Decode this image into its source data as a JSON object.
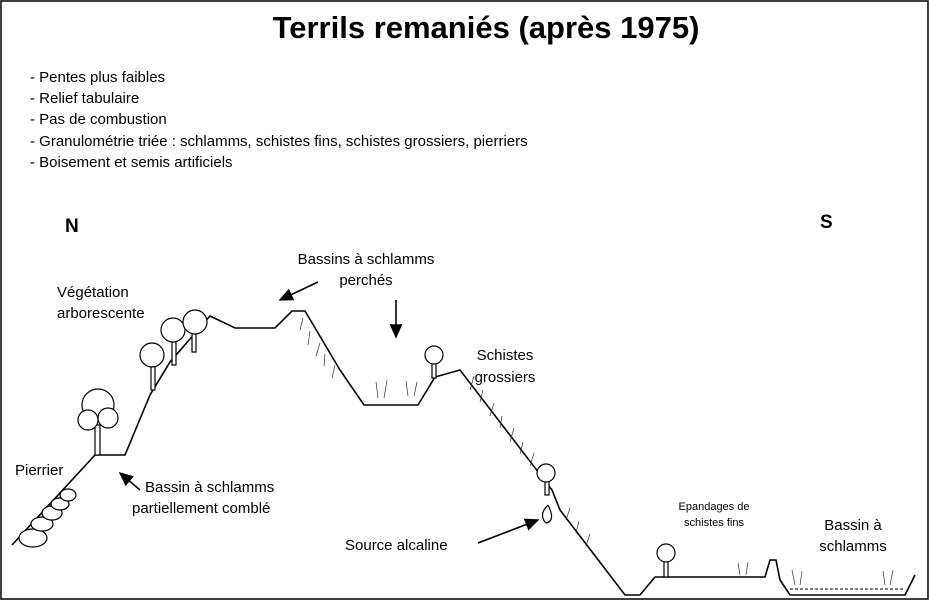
{
  "header": {
    "title": "Terrils remaniés (après 1975)"
  },
  "bullets": [
    "- Pentes plus faibles",
    "- Relief tabulaire",
    "- Pas de combustion",
    "- Granulométrie triée : schlamms, schistes fins, schistes grossiers, pierriers",
    "- Boisement et semis artificiels"
  ],
  "compass": {
    "north": "N",
    "south": "S"
  },
  "labels": {
    "vegetation": [
      "Végétation",
      "arborescente"
    ],
    "bassins_perches": [
      "Bassins à schlamms",
      "perchés"
    ],
    "schistes_grossiers": [
      "Schistes",
      "grossiers"
    ],
    "pierrier": [
      "Pierrier"
    ],
    "bassin_comble": [
      "Bassin à schlamms",
      "partiellement comblé"
    ],
    "source": [
      "Source alcaline"
    ],
    "epandages": [
      "Epandages de",
      "schistes fins"
    ],
    "bassin": [
      "Bassin à",
      "schlamms"
    ]
  }
}
